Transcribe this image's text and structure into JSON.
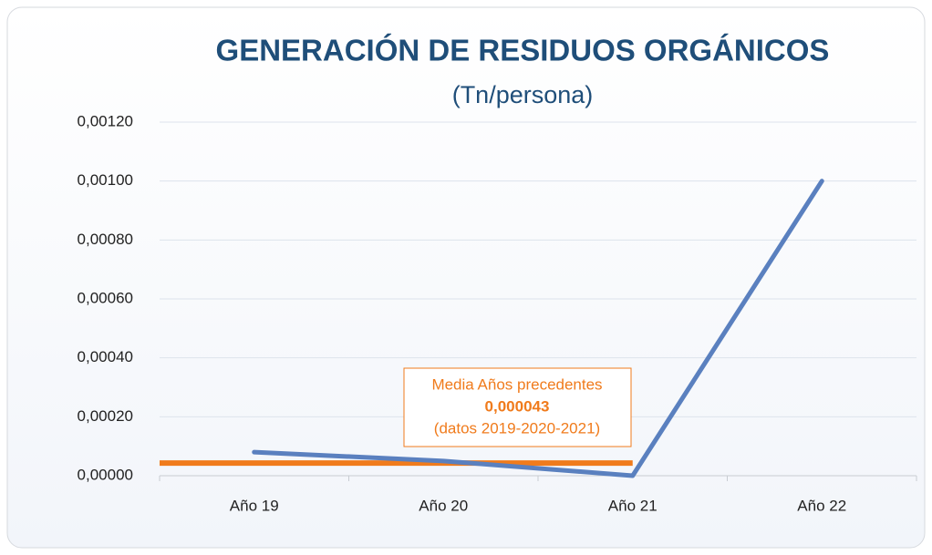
{
  "chart_data": {
    "type": "line",
    "title": "GENERACIÓN DE RESIDUOS ORGÁNICOS",
    "subtitle": "(Tn/persona)",
    "categories": [
      "Año 19",
      "Año 20",
      "Año 21",
      "Año 22"
    ],
    "values": [
      8e-05,
      5e-05,
      0,
      0.001
    ],
    "color": "#5a80bf",
    "ylim": [
      0,
      0.0012
    ],
    "yticks": [
      {
        "value": 0,
        "label": "0,00000"
      },
      {
        "value": 0.0002,
        "label": "0,00020"
      },
      {
        "value": 0.0004,
        "label": "0,00040"
      },
      {
        "value": 0.0006,
        "label": "0,00060"
      },
      {
        "value": 0.0008,
        "label": "0,00080"
      },
      {
        "value": 0.001,
        "label": "0,00100"
      },
      {
        "value": 0.0012,
        "label": "0,00120"
      }
    ],
    "grid": true,
    "mean": {
      "title": "Media Años precedentes",
      "value": 4.3e-05,
      "label": "0,000043",
      "note": "(datos 2019-2020-2021)",
      "color": "#f07b1c"
    }
  }
}
